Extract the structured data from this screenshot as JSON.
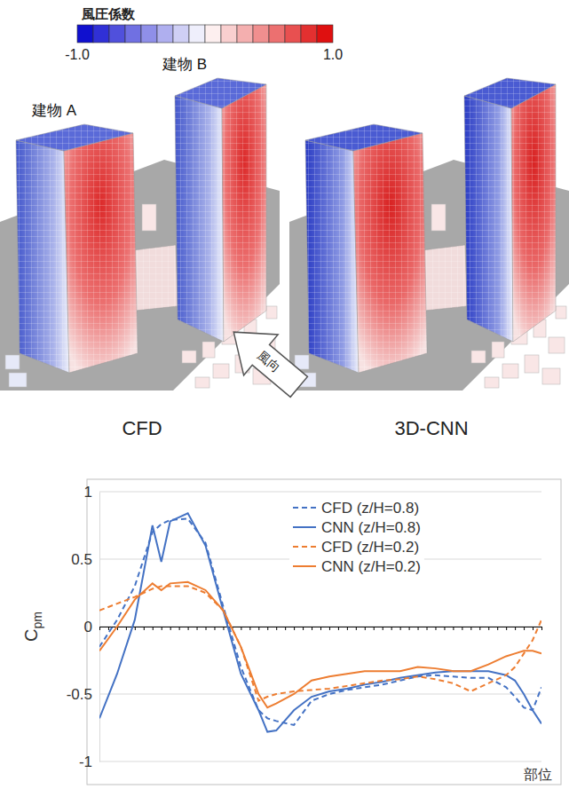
{
  "figure": {
    "colorbar": {
      "title": "風圧係数",
      "range": [
        -1,
        1
      ],
      "ticks": [
        {
          "value": -1,
          "label": "-1.0"
        },
        {
          "value": 1,
          "label": "1.0"
        }
      ]
    },
    "building_labels": [
      "建物 A",
      "建物 B"
    ],
    "wind_label": "風向",
    "panel_titles": [
      "CFD",
      "3D-CNN"
    ]
  },
  "chart_data": {
    "type": "line",
    "x": [
      0,
      2,
      4,
      5,
      6,
      7,
      8,
      10,
      12,
      14,
      16,
      18,
      19,
      20,
      22,
      24,
      26,
      28,
      30,
      32,
      34,
      36,
      38,
      40,
      42,
      44,
      46,
      47,
      48,
      49,
      50
    ],
    "series": [
      {
        "name": "CFD (z/H=0.8)",
        "color": "#4472c4",
        "line_style": "dashed",
        "values": [
          -0.15,
          0.05,
          0.3,
          0.5,
          0.7,
          0.76,
          0.79,
          0.8,
          0.62,
          0.15,
          -0.3,
          -0.62,
          -0.68,
          -0.7,
          -0.73,
          -0.55,
          -0.5,
          -0.47,
          -0.45,
          -0.43,
          -0.4,
          -0.37,
          -0.36,
          -0.37,
          -0.38,
          -0.38,
          -0.45,
          -0.52,
          -0.6,
          -0.62,
          -0.45
        ]
      },
      {
        "name": "CNN (z/H=0.8)",
        "color": "#4472c4",
        "line_style": "solid",
        "values": [
          -0.68,
          -0.35,
          0.05,
          0.4,
          0.75,
          0.48,
          0.78,
          0.84,
          0.6,
          0.12,
          -0.35,
          -0.62,
          -0.78,
          -0.77,
          -0.62,
          -0.52,
          -0.48,
          -0.46,
          -0.43,
          -0.41,
          -0.38,
          -0.36,
          -0.34,
          -0.33,
          -0.33,
          -0.33,
          -0.36,
          -0.4,
          -0.5,
          -0.62,
          -0.72
        ]
      },
      {
        "name": "CFD (z/H=0.2)",
        "color": "#ed7d31",
        "line_style": "dashed",
        "values": [
          0.12,
          0.17,
          0.22,
          0.25,
          0.28,
          0.3,
          0.3,
          0.3,
          0.25,
          0.12,
          -0.15,
          -0.55,
          -0.52,
          -0.5,
          -0.48,
          -0.47,
          -0.46,
          -0.44,
          -0.42,
          -0.4,
          -0.39,
          -0.37,
          -0.39,
          -0.42,
          -0.48,
          -0.42,
          -0.36,
          -0.3,
          -0.2,
          -0.1,
          0.05
        ]
      },
      {
        "name": "CNN (z/H=0.2)",
        "color": "#ed7d31",
        "line_style": "solid",
        "values": [
          -0.18,
          0.0,
          0.2,
          0.26,
          0.32,
          0.27,
          0.32,
          0.33,
          0.27,
          0.12,
          -0.15,
          -0.5,
          -0.6,
          -0.57,
          -0.5,
          -0.4,
          -0.37,
          -0.35,
          -0.33,
          -0.33,
          -0.33,
          -0.3,
          -0.31,
          -0.33,
          -0.33,
          -0.28,
          -0.22,
          -0.2,
          -0.18,
          -0.18,
          -0.2
        ]
      }
    ],
    "xlim": [
      0,
      50
    ],
    "xticks": [
      0,
      1,
      2,
      3,
      4,
      5,
      6,
      7,
      8,
      9,
      10,
      11,
      12,
      13,
      14,
      15,
      16,
      17,
      18,
      19,
      20,
      21,
      22,
      23,
      24,
      25,
      26,
      27,
      28,
      29,
      30,
      31,
      32,
      33,
      34,
      35,
      36,
      37,
      38,
      39,
      40,
      41,
      42,
      43,
      44,
      45,
      46,
      47,
      48,
      49,
      50
    ],
    "ylim": [
      -1,
      1
    ],
    "yticks": [
      -1,
      -0.5,
      0,
      0.5,
      1
    ],
    "grid": true,
    "legend": "upper right",
    "tick_labels": "y",
    "x_label": "部位",
    "y_label": "Cpm"
  }
}
